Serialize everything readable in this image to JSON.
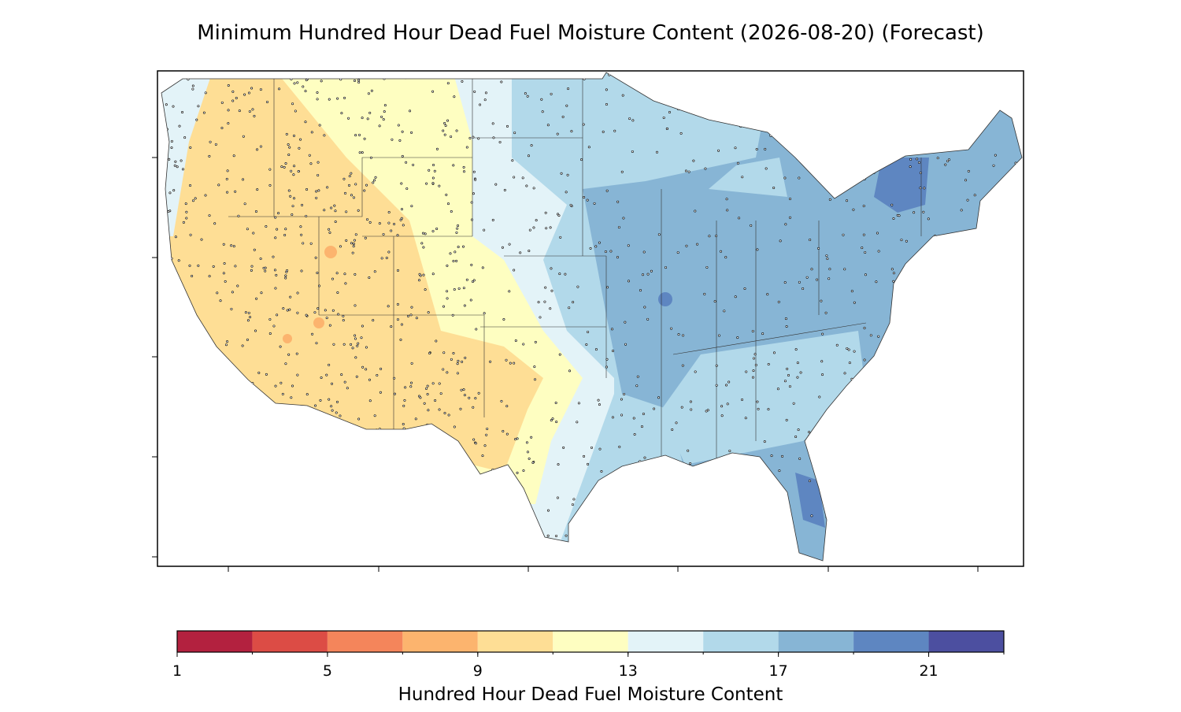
{
  "title": "Minimum Hundred Hour Dead Fuel Moisture Content (2026-08-20) (Forecast)",
  "colorbar": {
    "label": "Hundred Hour Dead Fuel Moisture Content",
    "bounds": [
      1,
      3,
      5,
      7,
      9,
      11,
      13,
      15,
      17,
      19,
      21,
      23
    ],
    "colors": [
      "#b3213f",
      "#dc4c45",
      "#f4855b",
      "#fcb46e",
      "#fede95",
      "#fefec1",
      "#e3f3f8",
      "#b2d9ea",
      "#87b5d5",
      "#5e86c1",
      "#4c4fa0"
    ],
    "ticks": [
      1,
      5,
      9,
      13,
      17,
      21
    ]
  }
}
